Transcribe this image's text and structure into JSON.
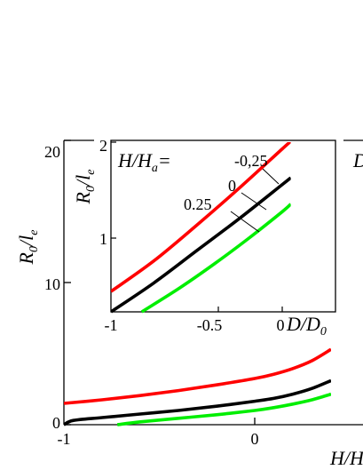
{
  "chart_data": [
    {
      "type": "line",
      "panel": "main",
      "xlabel": "H/H",
      "ylabel": "R0/le",
      "xlim": [
        -1,
        0.4
      ],
      "ylim": [
        0,
        20
      ],
      "x_ticks": [
        "-1",
        "0"
      ],
      "y_ticks": [
        "0",
        "10",
        "20"
      ],
      "legend_fragment": "D",
      "grid": false,
      "series": [
        {
          "color": "#ff0000",
          "x": [
            -1.0,
            -0.8,
            -0.6,
            -0.4,
            -0.2,
            0.0,
            0.1,
            0.2,
            0.3,
            0.4
          ],
          "y": [
            1.5,
            1.75,
            2.05,
            2.4,
            2.8,
            3.25,
            3.55,
            3.95,
            4.5,
            5.3
          ]
        },
        {
          "color": "#000000",
          "x": [
            -1.0,
            -0.95,
            -0.8,
            -0.6,
            -0.4,
            -0.2,
            0.0,
            0.1,
            0.2,
            0.3,
            0.4
          ],
          "y": [
            0.0,
            0.3,
            0.5,
            0.75,
            1.0,
            1.3,
            1.65,
            1.85,
            2.15,
            2.55,
            3.1
          ]
        },
        {
          "color": "#00ee00",
          "x": [
            -0.72,
            -0.6,
            -0.4,
            -0.2,
            0.0,
            0.1,
            0.2,
            0.3,
            0.4
          ],
          "y": [
            0.0,
            0.2,
            0.45,
            0.7,
            1.0,
            1.2,
            1.45,
            1.75,
            2.15
          ]
        }
      ]
    },
    {
      "type": "line",
      "panel": "inset",
      "title": "H/Ha=",
      "xlabel": "D/D0",
      "ylabel": "R0/le",
      "xlim": [
        -1,
        0.05
      ],
      "ylim": [
        0,
        2
      ],
      "x_ticks": [
        "-1",
        "-0.5",
        "0"
      ],
      "y_ticks": [
        "1",
        "2"
      ],
      "grid": false,
      "series": [
        {
          "name": "-0.25",
          "color": "#ff0000",
          "x": [
            -1.0,
            -0.75,
            -0.5,
            -0.25,
            0.0,
            0.05
          ],
          "y": [
            0.24,
            0.6,
            1.02,
            1.46,
            1.92,
            2.01
          ]
        },
        {
          "name": "0",
          "color": "#000000",
          "x": [
            -1.0,
            -0.75,
            -0.5,
            -0.25,
            0.0,
            0.05
          ],
          "y": [
            0.0,
            0.34,
            0.72,
            1.1,
            1.5,
            1.58
          ]
        },
        {
          "name": "0.25",
          "color": "#00ee00",
          "x": [
            -0.82,
            -0.6,
            -0.4,
            -0.2,
            0.0,
            0.05
          ],
          "y": [
            0.0,
            0.28,
            0.56,
            0.86,
            1.18,
            1.27
          ]
        }
      ]
    }
  ],
  "main": {
    "y_title_main": "R",
    "y_title_sub1": "0",
    "y_title_slash": "/l",
    "y_title_sub2": "e",
    "x_title": "H/H",
    "legend_fragment": "D",
    "y_ticks": [
      "0",
      "10",
      "20"
    ],
    "x_ticks": [
      "-1",
      "0"
    ]
  },
  "inset": {
    "title_main": "H/H",
    "title_sub": "a",
    "title_eq": "=",
    "label_red": "-0,25",
    "label_black": "0",
    "label_green": "0.25",
    "y_title_main": "R",
    "y_title_sub1": "0",
    "y_title_slash": "/l",
    "y_title_sub2": "e",
    "x_title_main": "D/D",
    "x_title_sub": "0",
    "y_ticks": [
      "1",
      "2"
    ],
    "x_ticks": [
      "-1",
      "-0.5",
      "0"
    ]
  }
}
